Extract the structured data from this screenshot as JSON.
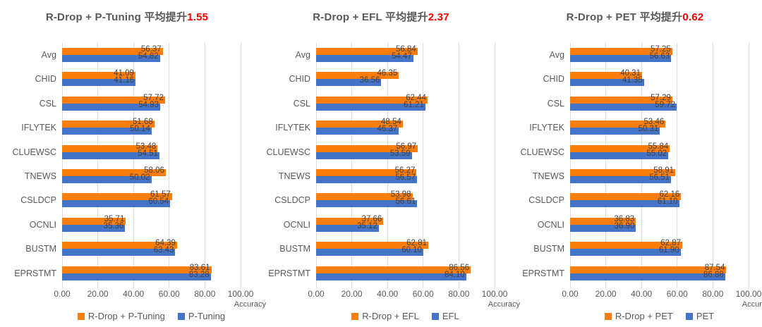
{
  "page": {
    "background": "#ffffff",
    "axis_label": "Accuracy",
    "grid_color": "#dcdcdc",
    "title_color": "#595959",
    "highlight_color": "#ff0000",
    "orange": "#fb7d0b",
    "blue": "#4474c8"
  },
  "chart_data": [
    {
      "type": "bar",
      "orientation": "horizontal",
      "title": "R-Drop + P-Tuning 平均提升",
      "title_highlight": "1.55",
      "categories": [
        "Avg",
        "CHID",
        "CSL",
        "IFLYTEK",
        "CLUEWSC",
        "TNEWS",
        "CSLDCP",
        "OCNLI",
        "BUSTM",
        "EPRSTMT"
      ],
      "series": [
        {
          "name": "R-Drop + P-Tuning",
          "color": "#fb7d0b",
          "values": [
            56.37,
            41.09,
            57.72,
            51.68,
            53.48,
            58.06,
            61.57,
            35.71,
            64.39,
            83.61
          ]
        },
        {
          "name": "P-Tuning",
          "color": "#4474c8",
          "values": [
            54.82,
            41.16,
            54.93,
            50.14,
            54.51,
            50.02,
            60.54,
            35.36,
            63.43,
            83.28
          ]
        }
      ],
      "xlabel": "Accuracy",
      "xlim": [
        0,
        100
      ],
      "xticks": [
        "0.00",
        "20.00",
        "40.00",
        "60.00",
        "80.00",
        "100.00"
      ],
      "grid": true,
      "legend_position": "bottom"
    },
    {
      "type": "bar",
      "orientation": "horizontal",
      "title": "R-Drop + EFL 平均提升",
      "title_highlight": "2.37",
      "categories": [
        "Avg",
        "CHID",
        "CSL",
        "IFLYTEK",
        "CLUEWSC",
        "TNEWS",
        "CSLDCP",
        "OCNLI",
        "BUSTM",
        "EPRSTMT"
      ],
      "series": [
        {
          "name": "R-Drop + EFL",
          "color": "#fb7d0b",
          "values": [
            56.84,
            46.35,
            62.44,
            48.54,
            56.97,
            56.27,
            53.98,
            37.66,
            62.81,
            86.56
          ]
        },
        {
          "name": "EFL",
          "color": "#4474c8",
          "values": [
            54.47,
            36.56,
            61.21,
            46.37,
            53.59,
            56.57,
            56.61,
            35.12,
            60.1,
            84.1
          ]
        }
      ],
      "xlabel": "Accuracy",
      "xlim": [
        0,
        100
      ],
      "xticks": [
        "0.00",
        "20.00",
        "40.00",
        "60.00",
        "80.00",
        "100.00"
      ],
      "grid": true,
      "legend_position": "bottom"
    },
    {
      "type": "bar",
      "orientation": "horizontal",
      "title": "R-Drop + PET 平均提升",
      "title_highlight": "0.62",
      "categories": [
        "Avg",
        "CHID",
        "CSL",
        "IFLYTEK",
        "CLUEWSC",
        "TNEWS",
        "CSLDCP",
        "OCNLI",
        "BUSTM",
        "EPRSTMT"
      ],
      "series": [
        {
          "name": "R-Drop + PET",
          "color": "#fb7d0b",
          "values": [
            57.25,
            40.31,
            57.29,
            53.46,
            55.84,
            58.91,
            62.16,
            36.83,
            62.87,
            87.54
          ]
        },
        {
          "name": "PET",
          "color": "#4474c8",
          "values": [
            56.63,
            41.35,
            59.72,
            50.31,
            55.02,
            56.51,
            61.1,
            36.9,
            61.9,
            86.88
          ]
        }
      ],
      "xlabel": "Accuracy",
      "xlim": [
        0,
        100
      ],
      "xticks": [
        "0.00",
        "20.00",
        "40.00",
        "60.00",
        "80.00",
        "100.00"
      ],
      "grid": true,
      "legend_position": "bottom"
    }
  ]
}
